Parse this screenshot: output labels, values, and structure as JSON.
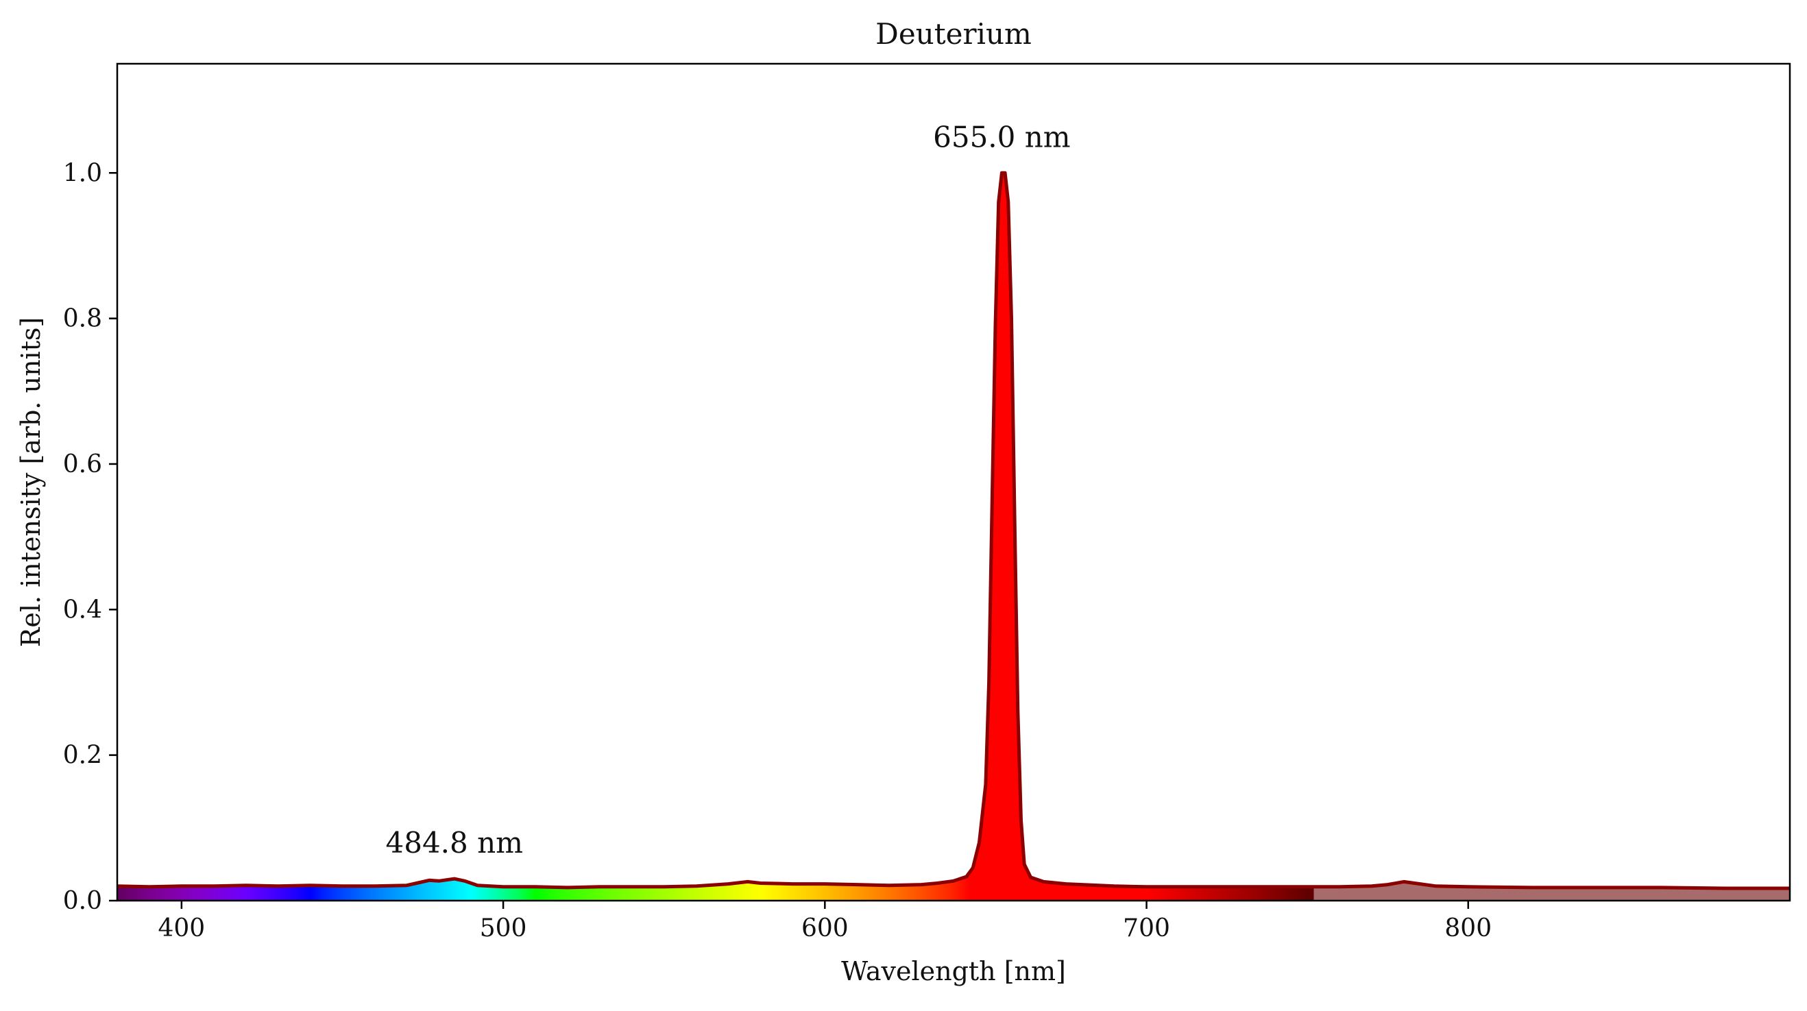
{
  "chart_data": {
    "type": "area",
    "title": "Deuterium",
    "xlabel": "Wavelength [nm]",
    "ylabel": "Rel. intensity [arb. units]",
    "xlim": [
      380,
      900
    ],
    "ylim": [
      0,
      1.15
    ],
    "xticks": [
      400,
      500,
      600,
      700,
      800
    ],
    "xtick_labels": [
      "400",
      "500",
      "600",
      "700",
      "800"
    ],
    "yticks": [
      0.0,
      0.2,
      0.4,
      0.6,
      0.8,
      1.0
    ],
    "ytick_labels": [
      "0.0",
      "0.2",
      "0.4",
      "0.6",
      "0.8",
      "1.0"
    ],
    "grid": false,
    "fill": "visible-spectrum gradient below curve; muted dark-red beyond visible range",
    "line_color": "#8b0000",
    "invisible_fill_color": "#a86b6b",
    "annotations": [
      {
        "x": 484.8,
        "y": 0.03,
        "text": "484.8 nm"
      },
      {
        "x": 655.0,
        "y": 1.0,
        "text": "655.0 nm"
      }
    ],
    "series": [
      {
        "x": [
          380,
          390,
          400,
          410,
          420,
          430,
          440,
          450,
          460,
          470,
          474,
          477,
          480,
          484.8,
          488,
          492,
          500,
          510,
          520,
          530,
          540,
          550,
          560,
          570,
          576,
          580,
          590,
          600,
          610,
          620,
          630,
          635,
          640,
          644,
          646,
          648,
          650,
          651,
          652,
          653,
          654,
          655,
          656,
          657,
          658,
          659,
          660,
          661,
          662,
          664,
          668,
          675,
          690,
          700,
          720,
          740,
          760,
          770,
          775,
          780,
          785,
          790,
          800,
          820,
          840,
          860,
          880,
          900
        ],
        "y": [
          0.02,
          0.019,
          0.02,
          0.02,
          0.021,
          0.02,
          0.021,
          0.02,
          0.02,
          0.021,
          0.025,
          0.028,
          0.027,
          0.03,
          0.027,
          0.021,
          0.019,
          0.019,
          0.018,
          0.019,
          0.019,
          0.019,
          0.02,
          0.023,
          0.026,
          0.024,
          0.023,
          0.023,
          0.022,
          0.021,
          0.022,
          0.024,
          0.027,
          0.033,
          0.045,
          0.08,
          0.16,
          0.3,
          0.55,
          0.79,
          0.96,
          1.0,
          1.0,
          0.96,
          0.8,
          0.52,
          0.26,
          0.11,
          0.05,
          0.032,
          0.026,
          0.023,
          0.02,
          0.019,
          0.019,
          0.019,
          0.019,
          0.02,
          0.022,
          0.026,
          0.023,
          0.02,
          0.019,
          0.018,
          0.018,
          0.018,
          0.017,
          0.017
        ]
      }
    ]
  }
}
